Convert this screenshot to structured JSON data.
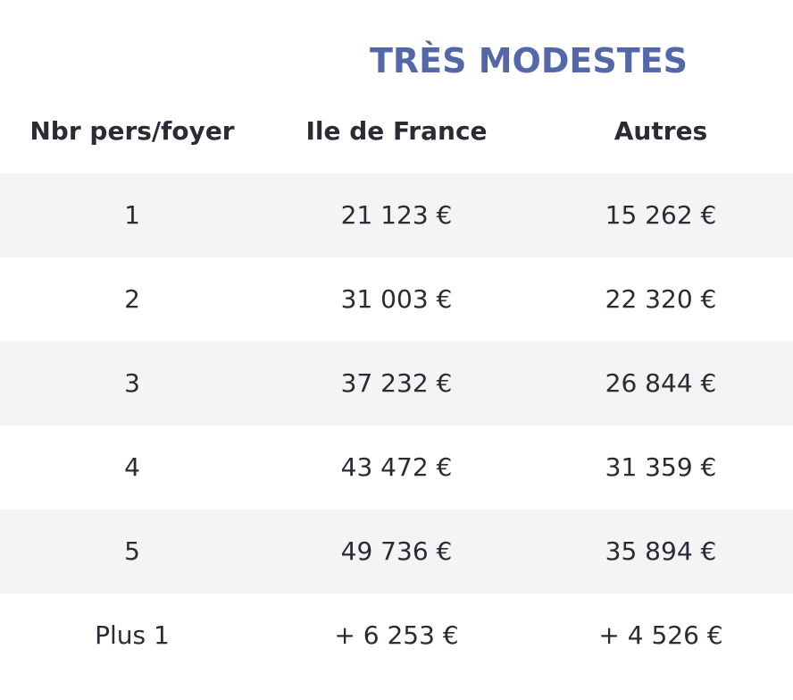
{
  "title": "TRÈS MODESTES",
  "columns": [
    "Nbr pers/foyer",
    "Ile de France",
    "Autres"
  ],
  "rows": [
    {
      "persons": "1",
      "idf": "21 123 €",
      "other": "15 262 €"
    },
    {
      "persons": "2",
      "idf": "31 003 €",
      "other": "22 320 €"
    },
    {
      "persons": "3",
      "idf": "37 232 €",
      "other": "26 844 €"
    },
    {
      "persons": "4",
      "idf": "43 472 €",
      "other": "31 359 €"
    },
    {
      "persons": "5",
      "idf": "49 736 €",
      "other": "35 894 €"
    },
    {
      "persons": "Plus 1",
      "idf": "+ 6 253 €",
      "other": "+ 4 526 €"
    }
  ],
  "colors": {
    "title": "#5467a8",
    "text": "#2b2b35",
    "row_shade": "#f4f4f4"
  }
}
